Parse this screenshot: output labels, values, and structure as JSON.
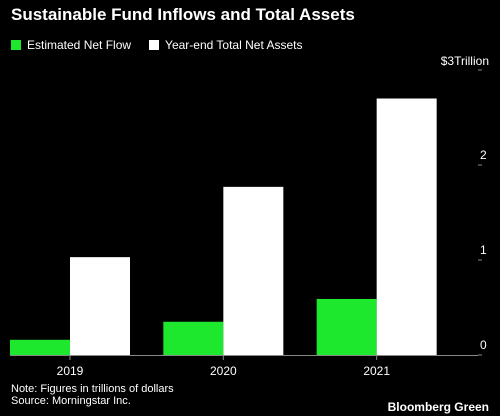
{
  "title": "Sustainable Fund Inflows and Total Assets",
  "colors": {
    "net_flow": "#1ee82e",
    "total_assets": "#ffffff",
    "axis": "#888888",
    "text": "#ffffff"
  },
  "legend": [
    {
      "label": "Estimated Net Flow",
      "color": "#1ee82e"
    },
    {
      "label": "Year-end Total Net Assets",
      "color": "#ffffff"
    }
  ],
  "chart_data": {
    "type": "bar",
    "categories": [
      "2019",
      "2020",
      "2021"
    ],
    "series": [
      {
        "name": "Estimated Net Flow",
        "values": [
          0.16,
          0.35,
          0.59
        ]
      },
      {
        "name": "Year-end Total Net Assets",
        "values": [
          1.03,
          1.77,
          2.7
        ]
      }
    ],
    "ylim": [
      0,
      3
    ],
    "yticks": [
      {
        "value": 0,
        "label": "0"
      },
      {
        "value": 1,
        "label": "1"
      },
      {
        "value": 2,
        "label": "2"
      },
      {
        "value": 3,
        "label": "$3Trillion"
      }
    ],
    "yaxis_position": "right",
    "grid": false
  },
  "footnote": {
    "note": "Note: Figures in trillions of dollars",
    "source": "Source: Morningstar Inc."
  },
  "brand": "Bloomberg Green"
}
